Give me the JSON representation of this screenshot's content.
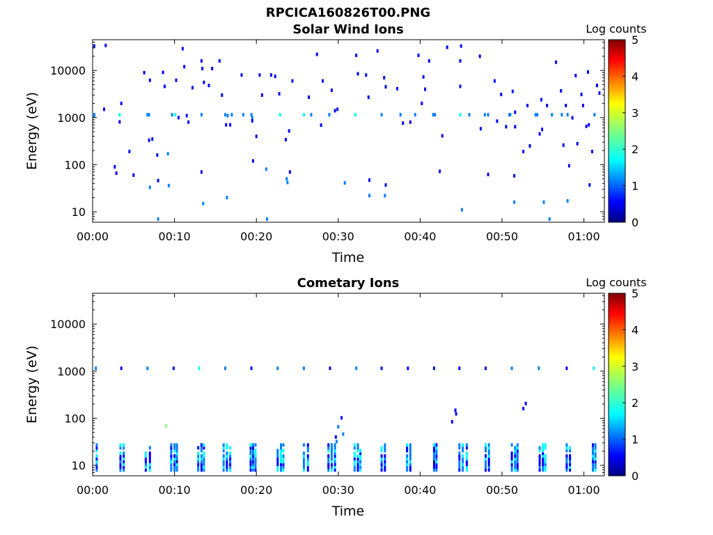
{
  "figure_title": "RPCICA160826T00.PNG",
  "colormap": [
    "#00007f",
    "#0000ff",
    "#007fff",
    "#00ffff",
    "#7fff7f",
    "#ffff00",
    "#ff7f00",
    "#ff0000",
    "#7f0000"
  ],
  "chart_data": [
    {
      "type": "heatmap",
      "title": "Solar Wind Ions",
      "xlabel": "Time",
      "ylabel": "Energy (eV)",
      "x_ticks": [
        "00:00",
        "00:10",
        "00:20",
        "00:30",
        "00:40",
        "00:50",
        "01:00"
      ],
      "y_ticks": [
        "10",
        "100",
        "1000",
        "10000"
      ],
      "y_scale": "log",
      "x_range_minutes": [
        0,
        62.5
      ],
      "y_range_eV": [
        6,
        45000
      ],
      "colorbar_label": "Log counts",
      "colorbar_ticks": [
        "0",
        "1",
        "2",
        "3",
        "4",
        "5"
      ],
      "colorbar_range": [
        0,
        5
      ],
      "points": [
        [
          0.2,
          1150,
          1.4
        ],
        [
          0.2,
          1080,
          1.0
        ],
        [
          1.4,
          1500,
          0.8
        ],
        [
          3.3,
          1150,
          1.9
        ],
        [
          3.5,
          2000,
          0.9
        ],
        [
          4.5,
          190,
          0.7
        ],
        [
          5.0,
          60,
          0.8
        ],
        [
          6.3,
          9000,
          0.8
        ],
        [
          6.7,
          1150,
          1.2
        ],
        [
          6.9,
          1150,
          1.5
        ],
        [
          7.0,
          6200,
          0.9
        ],
        [
          6.9,
          330,
          0.8
        ],
        [
          7.3,
          350,
          0.8
        ],
        [
          7.0,
          33,
          1.1
        ],
        [
          7.9,
          160,
          0.7
        ],
        [
          8.0,
          46,
          0.8
        ],
        [
          8.6,
          9100,
          0.8
        ],
        [
          8.8,
          4600,
          0.8
        ],
        [
          9.2,
          170,
          1.0
        ],
        [
          9.3,
          36,
          1.0
        ],
        [
          9.7,
          1150,
          1.0
        ],
        [
          10.1,
          1150,
          1.6
        ],
        [
          10.2,
          6200,
          0.8
        ],
        [
          10.5,
          1000,
          0.8
        ],
        [
          11.0,
          29000,
          0.9
        ],
        [
          11.2,
          12000,
          0.9
        ],
        [
          11.5,
          1100,
          0.8
        ],
        [
          11.7,
          800,
          0.7
        ],
        [
          12.2,
          4300,
          0.8
        ],
        [
          13.3,
          1150,
          1.3
        ],
        [
          13.3,
          16000,
          0.8
        ],
        [
          13.4,
          11000,
          0.8
        ],
        [
          13.6,
          5600,
          0.8
        ],
        [
          13.3,
          70,
          0.7
        ],
        [
          13.5,
          15,
          1.3
        ],
        [
          14.2,
          4800,
          0.9
        ],
        [
          14.6,
          11000,
          0.8
        ],
        [
          15.5,
          16000,
          0.8
        ],
        [
          15.8,
          3000,
          0.9
        ],
        [
          16.2,
          1150,
          1.3
        ],
        [
          16.5,
          1100,
          1.5
        ],
        [
          16.3,
          700,
          0.8
        ],
        [
          16.4,
          20,
          1.3
        ],
        [
          16.8,
          700,
          0.8
        ],
        [
          17.0,
          1150,
          1.1
        ],
        [
          18.2,
          8000,
          0.8
        ],
        [
          18.4,
          1150,
          1.4
        ],
        [
          19.4,
          1150,
          1.5
        ],
        [
          19.5,
          1000,
          1.2
        ],
        [
          19.5,
          850,
          0.8
        ],
        [
          19.6,
          120,
          0.7
        ],
        [
          20.0,
          400,
          0.8
        ],
        [
          20.4,
          8000,
          0.8
        ],
        [
          20.7,
          3000,
          0.8
        ],
        [
          21.2,
          80,
          1.0
        ],
        [
          21.8,
          8000,
          0.8
        ],
        [
          22.3,
          7500,
          0.8
        ],
        [
          22.9,
          1150,
          1.6
        ],
        [
          22.8,
          3200,
          0.8
        ],
        [
          23.6,
          340,
          0.8
        ],
        [
          23.7,
          50,
          1.0
        ],
        [
          23.8,
          42,
          1.2
        ],
        [
          24.0,
          520,
          0.8
        ],
        [
          24.1,
          70,
          0.7
        ],
        [
          24.4,
          6000,
          0.9
        ],
        [
          25.8,
          1150,
          1.7
        ],
        [
          26.4,
          2700,
          0.8
        ],
        [
          26.7,
          1150,
          1.1
        ],
        [
          27.4,
          22000,
          0.9
        ],
        [
          27.9,
          690,
          0.8
        ],
        [
          28.1,
          6000,
          0.9
        ],
        [
          28.9,
          1150,
          1.1
        ],
        [
          29.2,
          3800,
          0.8
        ],
        [
          29.6,
          1400,
          0.8
        ],
        [
          29.9,
          1500,
          0.8
        ],
        [
          30.8,
          41,
          1.0
        ],
        [
          32.1,
          1150,
          1.8
        ],
        [
          32.2,
          21000,
          0.8
        ],
        [
          32.4,
          8500,
          0.8
        ],
        [
          33.4,
          8000,
          0.8
        ],
        [
          33.7,
          2700,
          0.9
        ],
        [
          33.8,
          47,
          0.8
        ],
        [
          33.8,
          22,
          1.2
        ],
        [
          34.8,
          26000,
          0.8
        ],
        [
          35.3,
          1150,
          1.2
        ],
        [
          35.6,
          7000,
          0.8
        ],
        [
          35.8,
          4500,
          0.8
        ],
        [
          35.8,
          37,
          0.9
        ],
        [
          35.7,
          22,
          1.1
        ],
        [
          37.2,
          4100,
          0.8
        ],
        [
          37.6,
          1150,
          1.4
        ],
        [
          37.9,
          760,
          0.8
        ],
        [
          38.8,
          800,
          0.8
        ],
        [
          39.4,
          1150,
          1.2
        ],
        [
          39.8,
          21000,
          0.8
        ],
        [
          40.2,
          2000,
          0.8
        ],
        [
          40.4,
          7300,
          0.8
        ],
        [
          40.6,
          4000,
          0.8
        ],
        [
          41.1,
          16000,
          0.8
        ],
        [
          41.6,
          1150,
          1.3
        ],
        [
          41.8,
          1150,
          1.1
        ],
        [
          42.4,
          72,
          0.7
        ],
        [
          42.7,
          410,
          0.8
        ],
        [
          43.3,
          31000,
          0.9
        ],
        [
          44.9,
          1150,
          1.9
        ],
        [
          45.0,
          33000,
          0.9
        ],
        [
          44.9,
          16000,
          0.8
        ],
        [
          44.9,
          4600,
          0.8
        ],
        [
          45.1,
          11,
          1.5
        ],
        [
          46.0,
          1150,
          1.2
        ],
        [
          47.3,
          20000,
          0.8
        ],
        [
          47.4,
          580,
          0.8
        ],
        [
          47.9,
          1150,
          1.3
        ],
        [
          48.3,
          1150,
          1.1
        ],
        [
          48.3,
          62,
          0.8
        ],
        [
          49.1,
          6000,
          0.8
        ],
        [
          49.4,
          840,
          0.8
        ],
        [
          49.9,
          3100,
          0.8
        ],
        [
          50.5,
          640,
          0.8
        ],
        [
          50.9,
          1150,
          1.3
        ],
        [
          51.0,
          1150,
          1.0
        ],
        [
          51.3,
          3600,
          0.8
        ],
        [
          51.5,
          58,
          0.8
        ],
        [
          51.6,
          640,
          0.8
        ],
        [
          51.5,
          16,
          1.1
        ],
        [
          51.6,
          1300,
          0.7
        ],
        [
          52.6,
          190,
          0.8
        ],
        [
          53.1,
          1800,
          0.8
        ],
        [
          53.4,
          250,
          0.8
        ],
        [
          54.1,
          1150,
          1.4
        ],
        [
          54.3,
          1150,
          1.0
        ],
        [
          54.6,
          450,
          0.8
        ],
        [
          54.8,
          2400,
          0.8
        ],
        [
          54.9,
          560,
          0.8
        ],
        [
          55.1,
          16,
          1.2
        ],
        [
          55.5,
          1800,
          0.8
        ],
        [
          56.1,
          1150,
          1.3
        ],
        [
          56.6,
          15000,
          0.8
        ],
        [
          57.2,
          3700,
          0.8
        ],
        [
          57.3,
          1150,
          1.0
        ],
        [
          57.5,
          260,
          0.8
        ],
        [
          57.8,
          1800,
          0.8
        ],
        [
          58.0,
          1150,
          1.1
        ],
        [
          58.2,
          95,
          0.8
        ],
        [
          58.0,
          17,
          1.1
        ],
        [
          58.6,
          990,
          0.8
        ],
        [
          59.0,
          7800,
          0.8
        ],
        [
          59.2,
          280,
          0.8
        ],
        [
          59.7,
          3100,
          0.8
        ],
        [
          59.9,
          1800,
          0.8
        ],
        [
          60.3,
          650,
          0.8
        ],
        [
          60.5,
          9300,
          0.8
        ],
        [
          60.7,
          37,
          0.9
        ],
        [
          61.0,
          190,
          0.8
        ],
        [
          61.3,
          1150,
          1.5
        ],
        [
          61.6,
          4800,
          0.8
        ],
        [
          61.9,
          3300,
          0.8
        ],
        [
          0.2,
          33000,
          0.8
        ],
        [
          1.6,
          34000,
          0.8
        ],
        [
          2.7,
          90,
          0.9
        ],
        [
          2.9,
          66,
          0.7
        ],
        [
          3.3,
          810,
          0.8
        ],
        [
          21.3,
          7,
          1.0
        ],
        [
          8.0,
          7,
          1.0
        ],
        [
          55.8,
          7,
          1.0
        ],
        [
          60.6,
          700,
          0.8
        ]
      ]
    },
    {
      "type": "heatmap",
      "title": "Cometary Ions",
      "xlabel": "Time",
      "ylabel": "Energy (eV)",
      "x_ticks": [
        "00:00",
        "00:10",
        "00:20",
        "00:30",
        "00:40",
        "00:50",
        "01:00"
      ],
      "y_ticks": [
        "10",
        "100",
        "1000",
        "10000"
      ],
      "y_scale": "log",
      "x_range_minutes": [
        0,
        62.5
      ],
      "y_range_eV": [
        6,
        45000
      ],
      "colorbar_label": "Log counts",
      "colorbar_ticks": [
        "0",
        "1",
        "2",
        "3",
        "4",
        "5"
      ],
      "colorbar_range": [
        0,
        5
      ],
      "columns_low_energy": [
        0.5,
        3.4,
        3.8,
        6.5,
        7.0,
        9.6,
        10.0,
        10.3,
        12.9,
        13.3,
        13.6,
        16.0,
        16.4,
        16.8,
        19.3,
        19.6,
        19.9,
        22.6,
        23.0,
        23.3,
        25.8,
        26.3,
        28.8,
        29.2,
        29.6,
        32.0,
        32.4,
        32.7,
        35.3,
        35.7,
        38.4,
        38.8,
        41.7,
        42.0,
        44.8,
        45.2,
        45.7,
        48.0,
        48.4,
        51.2,
        51.6,
        51.9,
        54.6,
        55.0,
        55.3,
        57.9,
        58.3,
        61.1,
        61.4
      ],
      "points_mid": [
        [
          0.4,
          1150,
          1.2
        ],
        [
          3.5,
          1150,
          0.9
        ],
        [
          6.7,
          1150,
          1.0
        ],
        [
          9.9,
          1150,
          0.6
        ],
        [
          13.0,
          1150,
          1.7
        ],
        [
          16.2,
          1150,
          1.3
        ],
        [
          19.4,
          1150,
          0.9
        ],
        [
          22.6,
          1150,
          1.0
        ],
        [
          25.8,
          1150,
          1.3
        ],
        [
          29.0,
          1150,
          0.8
        ],
        [
          32.2,
          1150,
          1.0
        ],
        [
          35.3,
          1150,
          0.9
        ],
        [
          38.5,
          1150,
          0.8
        ],
        [
          41.7,
          1150,
          0.9
        ],
        [
          44.8,
          1150,
          0.9
        ],
        [
          48.0,
          1150,
          0.8
        ],
        [
          51.2,
          1150,
          1.0
        ],
        [
          54.5,
          1150,
          1.0
        ],
        [
          57.9,
          1150,
          0.8
        ],
        [
          61.2,
          1150,
          1.6
        ],
        [
          9.0,
          68,
          2.5
        ],
        [
          29.7,
          40,
          0.9
        ],
        [
          30.0,
          66,
          1.1
        ],
        [
          30.4,
          102,
          0.9
        ],
        [
          30.6,
          46,
          1.0
        ],
        [
          29.8,
          32,
          1.0
        ],
        [
          43.9,
          84,
          0.9
        ],
        [
          44.3,
          148,
          0.9
        ],
        [
          44.4,
          124,
          0.9
        ],
        [
          52.6,
          160,
          0.9
        ],
        [
          52.9,
          205,
          0.9
        ]
      ]
    }
  ]
}
